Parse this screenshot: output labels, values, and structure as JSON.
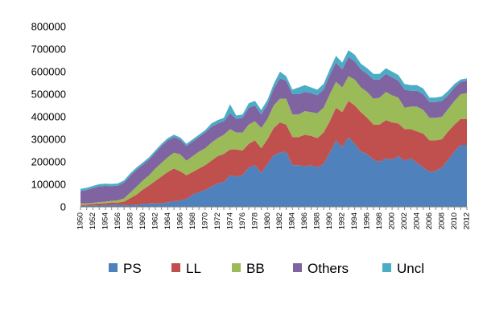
{
  "chart_data": {
    "type": "area",
    "stacked": true,
    "x": [
      1950,
      1951,
      1952,
      1953,
      1954,
      1955,
      1956,
      1957,
      1958,
      1959,
      1960,
      1961,
      1962,
      1963,
      1964,
      1965,
      1966,
      1967,
      1968,
      1969,
      1970,
      1971,
      1972,
      1973,
      1974,
      1975,
      1976,
      1977,
      1978,
      1979,
      1980,
      1981,
      1982,
      1983,
      1984,
      1985,
      1986,
      1987,
      1988,
      1989,
      1990,
      1991,
      1992,
      1993,
      1994,
      1995,
      1996,
      1997,
      1998,
      1999,
      2000,
      2001,
      2002,
      2003,
      2004,
      2005,
      2006,
      2007,
      2008,
      2009,
      2010,
      2011,
      2012
    ],
    "x_tick_labels": [
      "1950",
      "1952",
      "1954",
      "1956",
      "1958",
      "1960",
      "1962",
      "1964",
      "1966",
      "1968",
      "1970",
      "1972",
      "1974",
      "1976",
      "1978",
      "1980",
      "1982",
      "1984",
      "1986",
      "1988",
      "1990",
      "1992",
      "1994",
      "1996",
      "1998",
      "2000",
      "2002",
      "2004",
      "2006",
      "2008",
      "2010",
      "2012"
    ],
    "y_tick_labels": [
      "0",
      "100000",
      "200000",
      "300000",
      "400000",
      "500000",
      "600000",
      "700000",
      "800000"
    ],
    "ylim": [
      0,
      800000
    ],
    "legend_position": "bottom",
    "series": [
      {
        "name": "PS",
        "color": "#4f81bd",
        "values": [
          5000,
          5000,
          6000,
          7000,
          8000,
          10000,
          10000,
          8000,
          9000,
          10000,
          12000,
          15000,
          15000,
          15000,
          20000,
          25000,
          28000,
          35000,
          55000,
          65000,
          75000,
          90000,
          105000,
          110000,
          140000,
          135000,
          140000,
          175000,
          185000,
          150000,
          190000,
          230000,
          240000,
          245000,
          185000,
          185000,
          180000,
          185000,
          175000,
          190000,
          240000,
          295000,
          265000,
          310000,
          280000,
          245000,
          235000,
          210000,
          200000,
          215000,
          210000,
          225000,
          205000,
          215000,
          195000,
          175000,
          155000,
          160000,
          175000,
          210000,
          245000,
          275000,
          275000
        ]
      },
      {
        "name": "LL",
        "color": "#c0504d",
        "values": [
          5000,
          5000,
          7000,
          8000,
          8000,
          9000,
          9000,
          15000,
          30000,
          45000,
          65000,
          80000,
          100000,
          120000,
          135000,
          145000,
          130000,
          105000,
          100000,
          105000,
          110000,
          115000,
          120000,
          125000,
          115000,
          120000,
          110000,
          105000,
          110000,
          110000,
          110000,
          120000,
          135000,
          120000,
          125000,
          125000,
          140000,
          130000,
          130000,
          140000,
          140000,
          145000,
          155000,
          160000,
          170000,
          175000,
          160000,
          155000,
          165000,
          170000,
          165000,
          145000,
          140000,
          130000,
          140000,
          150000,
          140000,
          135000,
          125000,
          125000,
          120000,
          115000,
          115000
        ]
      },
      {
        "name": "BB",
        "color": "#9bbb59",
        "values": [
          5000,
          5000,
          5000,
          6000,
          7000,
          8000,
          10000,
          15000,
          25000,
          35000,
          40000,
          45000,
          55000,
          60000,
          65000,
          70000,
          75000,
          65000,
          70000,
          75000,
          75000,
          80000,
          80000,
          85000,
          90000,
          75000,
          80000,
          85000,
          85000,
          90000,
          90000,
          100000,
          105000,
          115000,
          100000,
          100000,
          105000,
          105000,
          110000,
          110000,
          120000,
          115000,
          110000,
          110000,
          115000,
          110000,
          115000,
          115000,
          120000,
          125000,
          120000,
          115000,
          95000,
          100000,
          110000,
          105000,
          100000,
          100000,
          100000,
          100000,
          105000,
          110000,
          115000
        ]
      },
      {
        "name": "Others",
        "color": "#8064a2",
        "values": [
          55000,
          60000,
          65000,
          70000,
          70000,
          65000,
          65000,
          70000,
          75000,
          75000,
          70000,
          70000,
          70000,
          75000,
          75000,
          70000,
          65000,
          65000,
          65000,
          65000,
          70000,
          70000,
          65000,
          60000,
          70000,
          60000,
          65000,
          75000,
          70000,
          60000,
          65000,
          75000,
          90000,
          80000,
          90000,
          90000,
          85000,
          85000,
          80000,
          80000,
          85000,
          85000,
          80000,
          85000,
          80000,
          80000,
          80000,
          85000,
          80000,
          80000,
          80000,
          75000,
          80000,
          70000,
          70000,
          70000,
          70000,
          70000,
          70000,
          60000,
          60000,
          55000,
          55000
        ]
      },
      {
        "name": "Uncl",
        "color": "#4bacc6",
        "values": [
          10000,
          10000,
          10000,
          10000,
          10000,
          10000,
          10000,
          10000,
          10000,
          10000,
          10000,
          10000,
          10000,
          10000,
          10000,
          10000,
          10000,
          10000,
          10000,
          10000,
          10000,
          15000,
          15000,
          15000,
          40000,
          15000,
          15000,
          20000,
          20000,
          20000,
          20000,
          20000,
          30000,
          20000,
          20000,
          30000,
          30000,
          25000,
          25000,
          25000,
          25000,
          30000,
          30000,
          30000,
          30000,
          25000,
          25000,
          25000,
          25000,
          25000,
          25000,
          25000,
          25000,
          25000,
          25000,
          25000,
          20000,
          20000,
          20000,
          20000,
          15000,
          10000,
          10000
        ]
      }
    ]
  }
}
